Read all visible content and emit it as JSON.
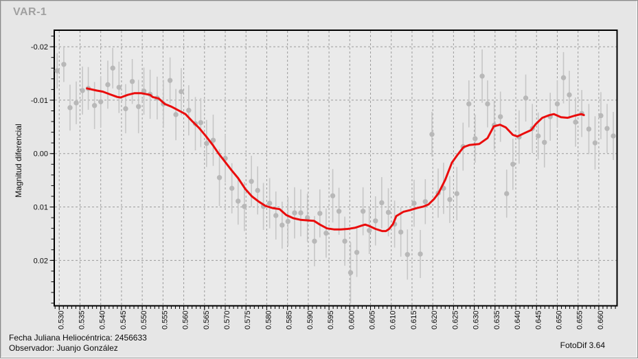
{
  "title": "VAR-1",
  "footer": {
    "hjd": {
      "label": "Fecha Juliana Heliocéntrica:",
      "value": "2456633"
    },
    "observer": {
      "label": "Observador:",
      "value": "Juanjo González"
    },
    "app_version": "FotoDif 3.64"
  },
  "chart_data": {
    "type": "scatter",
    "title": "VAR-1",
    "xlabel": "",
    "ylabel": "Magnitud diferencial",
    "grid": "dashed",
    "legend": "none",
    "x_axis": {
      "min": 0.5288,
      "max": 0.6644,
      "major_step": 0.005,
      "minor_step": 0.001,
      "tick_values": [
        0.53,
        0.535,
        0.54,
        0.545,
        0.55,
        0.555,
        0.56,
        0.565,
        0.57,
        0.575,
        0.58,
        0.585,
        0.59,
        0.595,
        0.6,
        0.605,
        0.61,
        0.615,
        0.62,
        0.625,
        0.63,
        0.635,
        0.64,
        0.645,
        0.65,
        0.655,
        0.66
      ],
      "tick_labels": [
        "0.530",
        "0.535",
        "0.540",
        "0.545",
        "0.550",
        "0.555",
        "0.560",
        "0.565",
        "0.570",
        "0.575",
        "0.580",
        "0.585",
        "0.590",
        "0.595",
        "0.600",
        "0.605",
        "0.610",
        "0.615",
        "0.620",
        "0.625",
        "0.630",
        "0.635",
        "0.640",
        "0.645",
        "0.650",
        "0.655",
        "0.660"
      ]
    },
    "y_axis": {
      "min": -0.0231,
      "max": 0.0285,
      "inverted_magnitude_axis": true,
      "major_step": 0.01,
      "minor_step": 0.002,
      "tick_values": [
        -0.02,
        -0.01,
        0.0,
        0.01,
        0.02
      ],
      "tick_labels": [
        "-0.02",
        "-0.01",
        "0.00",
        "0.01",
        "0.02"
      ]
    },
    "colors": {
      "page_background": "#e6e6e6",
      "plot_background": "#eaeaea",
      "grid": "#9b9b9b",
      "axis": "#000000",
      "scatter": "#b8b8b8",
      "error_bar": "#c6c6c6",
      "trend_line": "#ea0c0c",
      "title_text": "#a0a0a0",
      "text": "#0a0a0a"
    },
    "series": [
      {
        "name": "observaciones",
        "type": "scatter",
        "marker": "circle",
        "color": "#b8b8b8",
        "error_bar_color": "#c6c6c6",
        "points": [
          [
            0.5295,
            -0.0155,
            0.0033
          ],
          [
            0.5311,
            -0.0167,
            0.0033
          ],
          [
            0.5326,
            -0.0086,
            0.0043
          ],
          [
            0.5341,
            -0.0095,
            0.004
          ],
          [
            0.5356,
            -0.0118,
            0.0045
          ],
          [
            0.537,
            -0.0122,
            0.004
          ],
          [
            0.5385,
            -0.009,
            0.0044
          ],
          [
            0.54,
            -0.0097,
            0.0048
          ],
          [
            0.5417,
            -0.0129,
            0.0045
          ],
          [
            0.5429,
            -0.016,
            0.0038
          ],
          [
            0.5444,
            -0.0124,
            0.0048
          ],
          [
            0.546,
            -0.0084,
            0.0046
          ],
          [
            0.5476,
            -0.0135,
            0.0042
          ],
          [
            0.5491,
            -0.0088,
            0.005
          ],
          [
            0.5504,
            -0.0117,
            0.0044
          ],
          [
            0.5519,
            -0.0111,
            0.0046
          ],
          [
            0.5536,
            -0.0104,
            0.004
          ],
          [
            0.5551,
            -0.0093,
            0.0045
          ],
          [
            0.5567,
            -0.0137,
            0.0043
          ],
          [
            0.5581,
            -0.0073,
            0.0048
          ],
          [
            0.5594,
            -0.0116,
            0.0044
          ],
          [
            0.5612,
            -0.0081,
            0.0047
          ],
          [
            0.5628,
            -0.0056,
            0.005
          ],
          [
            0.5641,
            -0.0058,
            0.0046
          ],
          [
            0.5655,
            -0.0019,
            0.0044
          ],
          [
            0.5671,
            -0.0025,
            0.0048
          ],
          [
            0.5686,
            0.0045,
            0.0053
          ],
          [
            0.57,
            0.0009,
            0.0045
          ],
          [
            0.5716,
            0.0065,
            0.0047
          ],
          [
            0.5731,
            0.0089,
            0.0044
          ],
          [
            0.5746,
            0.0099,
            0.0046
          ],
          [
            0.5763,
            0.0052,
            0.0048
          ],
          [
            0.5778,
            0.0069,
            0.0045
          ],
          [
            0.5792,
            0.0099,
            0.0044
          ],
          [
            0.5807,
            0.0093,
            0.0047
          ],
          [
            0.5822,
            0.0116,
            0.0045
          ],
          [
            0.5837,
            0.0134,
            0.0044
          ],
          [
            0.5851,
            0.0127,
            0.0046
          ],
          [
            0.5867,
            0.0111,
            0.0048
          ],
          [
            0.5882,
            0.0111,
            0.0044
          ],
          [
            0.5898,
            0.012,
            0.0045
          ],
          [
            0.5915,
            0.0164,
            0.0047
          ],
          [
            0.5928,
            0.0112,
            0.0045
          ],
          [
            0.5943,
            0.0149,
            0.0046
          ],
          [
            0.5959,
            0.0079,
            0.005
          ],
          [
            0.5974,
            0.0108,
            0.0044
          ],
          [
            0.5988,
            0.0164,
            0.0046
          ],
          [
            0.6002,
            0.0223,
            0.0057
          ],
          [
            0.6017,
            0.0185,
            0.0046
          ],
          [
            0.6032,
            0.0108,
            0.0045
          ],
          [
            0.6047,
            0.0144,
            0.0044
          ],
          [
            0.6062,
            0.0126,
            0.0046
          ],
          [
            0.6077,
            0.0092,
            0.0048
          ],
          [
            0.6093,
            0.011,
            0.0045
          ],
          [
            0.6108,
            0.0132,
            0.0044
          ],
          [
            0.6123,
            0.0147,
            0.0046
          ],
          [
            0.6139,
            0.0189,
            0.0047
          ],
          [
            0.6155,
            0.0093,
            0.0044
          ],
          [
            0.617,
            0.0188,
            0.0045
          ],
          [
            0.6182,
            0.009,
            0.0042
          ],
          [
            0.6198,
            -0.0036,
            0.0042
          ],
          [
            0.6213,
            0.0074,
            0.0046
          ],
          [
            0.6226,
            0.0065,
            0.0048
          ],
          [
            0.6241,
            0.0086,
            0.0044
          ],
          [
            0.6258,
            0.0075,
            0.005
          ],
          [
            0.6273,
            -0.0013,
            0.0045
          ],
          [
            0.6287,
            -0.0093,
            0.0044
          ],
          [
            0.6302,
            -0.0028,
            0.0045
          ],
          [
            0.6319,
            -0.0145,
            0.005
          ],
          [
            0.6332,
            -0.0093,
            0.0044
          ],
          [
            0.6348,
            -0.0053,
            0.0046
          ],
          [
            0.6363,
            -0.0069,
            0.0047
          ],
          [
            0.6378,
            0.0075,
            0.0045
          ],
          [
            0.6393,
            0.002,
            0.0048
          ],
          [
            0.6408,
            -0.0031,
            0.005
          ],
          [
            0.6424,
            -0.0104,
            0.0044
          ],
          [
            0.644,
            -0.0047,
            0.0046
          ],
          [
            0.6454,
            -0.0033,
            0.0044
          ],
          [
            0.6469,
            -0.0021,
            0.0047
          ],
          [
            0.6483,
            -0.0069,
            0.0045
          ],
          [
            0.65,
            -0.0093,
            0.0044
          ],
          [
            0.6515,
            -0.0142,
            0.0048
          ],
          [
            0.6529,
            -0.011,
            0.0045
          ],
          [
            0.6544,
            -0.0059,
            0.0046
          ],
          [
            0.6559,
            -0.0075,
            0.0044
          ],
          [
            0.6576,
            -0.0046,
            0.0047
          ],
          [
            0.6591,
            -0.002,
            0.005
          ],
          [
            0.6605,
            -0.0071,
            0.0044
          ],
          [
            0.662,
            -0.0047,
            0.0046
          ],
          [
            0.6635,
            -0.0033,
            0.0045
          ]
        ]
      },
      {
        "name": "curva-suavizada",
        "type": "line",
        "color": "#ea0c0c",
        "width": 3,
        "points": [
          [
            0.5367,
            -0.0122
          ],
          [
            0.539,
            -0.0118
          ],
          [
            0.5405,
            -0.0116
          ],
          [
            0.5422,
            -0.0111
          ],
          [
            0.544,
            -0.0106
          ],
          [
            0.5448,
            -0.0105
          ],
          [
            0.5465,
            -0.011
          ],
          [
            0.5481,
            -0.0113
          ],
          [
            0.5498,
            -0.0113
          ],
          [
            0.5519,
            -0.011
          ],
          [
            0.5525,
            -0.0106
          ],
          [
            0.554,
            -0.0103
          ],
          [
            0.5554,
            -0.0093
          ],
          [
            0.557,
            -0.0088
          ],
          [
            0.5587,
            -0.0081
          ],
          [
            0.5604,
            -0.0074
          ],
          [
            0.562,
            -0.0061
          ],
          [
            0.5637,
            -0.0048
          ],
          [
            0.5653,
            -0.0033
          ],
          [
            0.567,
            -0.0016
          ],
          [
            0.5684,
            0.0
          ],
          [
            0.5698,
            0.0014
          ],
          [
            0.5715,
            0.0031
          ],
          [
            0.5731,
            0.0046
          ],
          [
            0.5748,
            0.0066
          ],
          [
            0.5764,
            0.008
          ],
          [
            0.5781,
            0.009
          ],
          [
            0.5797,
            0.0098
          ],
          [
            0.5814,
            0.0102
          ],
          [
            0.5831,
            0.0104
          ],
          [
            0.5847,
            0.0115
          ],
          [
            0.5864,
            0.0121
          ],
          [
            0.5881,
            0.0124
          ],
          [
            0.5897,
            0.0125
          ],
          [
            0.5914,
            0.0126
          ],
          [
            0.5928,
            0.0133
          ],
          [
            0.5945,
            0.014
          ],
          [
            0.5962,
            0.0142
          ],
          [
            0.5978,
            0.0142
          ],
          [
            0.5995,
            0.0141
          ],
          [
            0.6012,
            0.0139
          ],
          [
            0.6028,
            0.0135
          ],
          [
            0.6037,
            0.0133
          ],
          [
            0.6045,
            0.0135
          ],
          [
            0.6062,
            0.0141
          ],
          [
            0.6078,
            0.0145
          ],
          [
            0.6087,
            0.0145
          ],
          [
            0.6095,
            0.0141
          ],
          [
            0.6104,
            0.0132
          ],
          [
            0.6112,
            0.0117
          ],
          [
            0.6129,
            0.0109
          ],
          [
            0.6145,
            0.0106
          ],
          [
            0.6162,
            0.0102
          ],
          [
            0.6178,
            0.0099
          ],
          [
            0.619,
            0.0095
          ],
          [
            0.6203,
            0.0085
          ],
          [
            0.6214,
            0.0074
          ],
          [
            0.623,
            0.0049
          ],
          [
            0.6246,
            0.0017
          ],
          [
            0.626,
            0.0002
          ],
          [
            0.6274,
            -0.0012
          ],
          [
            0.6288,
            -0.0016
          ],
          [
            0.6312,
            -0.0018
          ],
          [
            0.6332,
            -0.0029
          ],
          [
            0.6347,
            -0.0051
          ],
          [
            0.6362,
            -0.0054
          ],
          [
            0.6376,
            -0.0049
          ],
          [
            0.6393,
            -0.0035
          ],
          [
            0.6404,
            -0.0032
          ],
          [
            0.642,
            -0.0038
          ],
          [
            0.6437,
            -0.0044
          ],
          [
            0.6448,
            -0.0055
          ],
          [
            0.6464,
            -0.0067
          ],
          [
            0.6481,
            -0.0072
          ],
          [
            0.6492,
            -0.0074
          ],
          [
            0.6509,
            -0.0068
          ],
          [
            0.6525,
            -0.0067
          ],
          [
            0.6542,
            -0.0071
          ],
          [
            0.6558,
            -0.0074
          ],
          [
            0.6564,
            -0.0072
          ]
        ]
      }
    ]
  }
}
